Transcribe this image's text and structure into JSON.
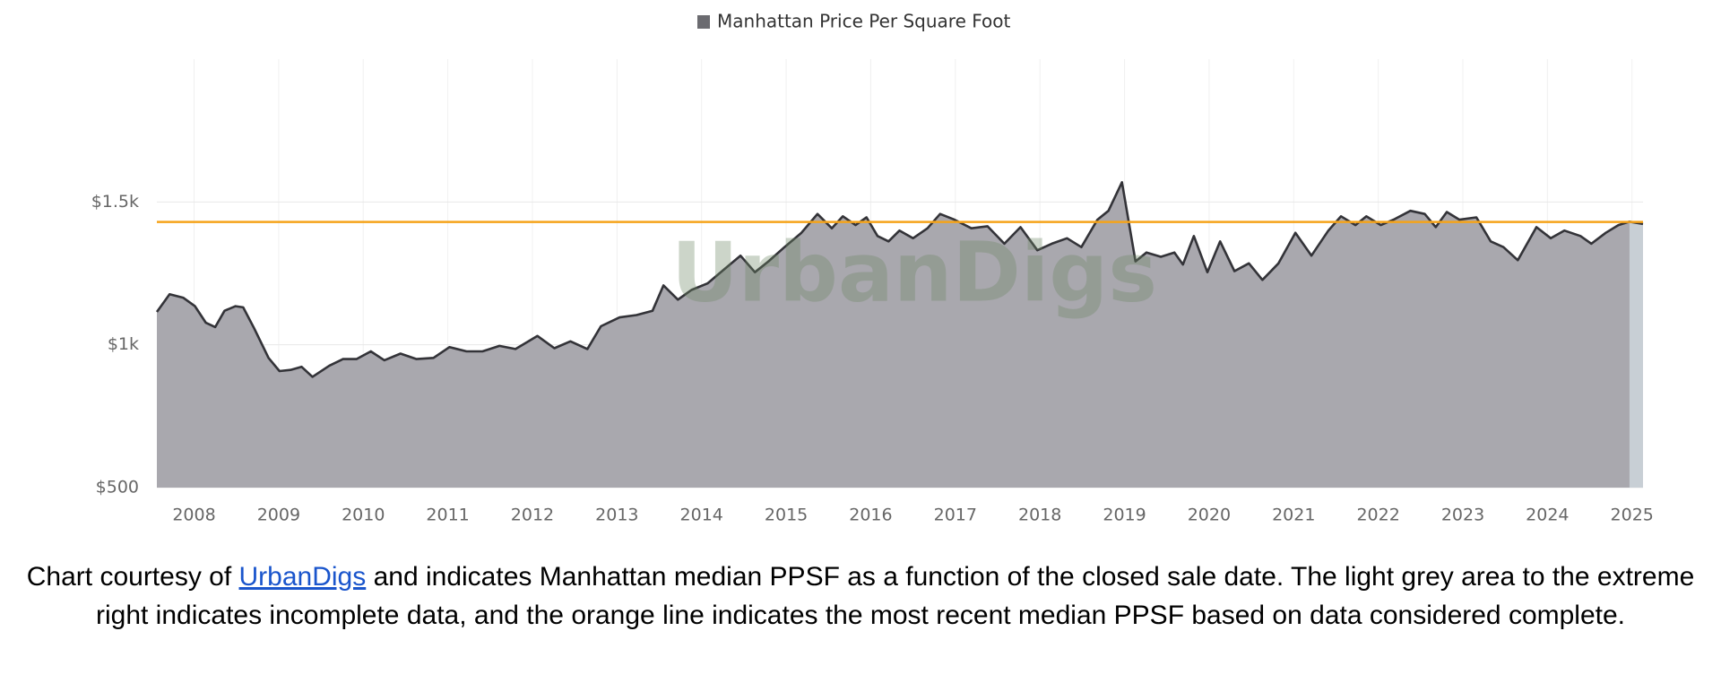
{
  "chart_data": {
    "type": "area",
    "series": [
      {
        "name": "Manhattan Price Per Square Foot",
        "color": "#a9a8ae",
        "line_color": "#333338",
        "x": [
          2007.56,
          2007.71,
          2007.87,
          2008.01,
          2008.14,
          2008.25,
          2008.36,
          2008.49,
          2008.58,
          2008.71,
          2008.88,
          2009.01,
          2009.14,
          2009.27,
          2009.4,
          2009.6,
          2009.76,
          2009.92,
          2010.09,
          2010.25,
          2010.44,
          2010.63,
          2010.83,
          2011.02,
          2011.22,
          2011.41,
          2011.61,
          2011.8,
          2012.06,
          2012.26,
          2012.45,
          2012.65,
          2012.81,
          2013.03,
          2013.23,
          2013.42,
          2013.55,
          2013.72,
          2013.88,
          2014.07,
          2014.27,
          2014.46,
          2014.63,
          2014.79,
          2014.98,
          2015.18,
          2015.37,
          2015.54,
          2015.67,
          2015.82,
          2015.95,
          2016.08,
          2016.21,
          2016.34,
          2016.5,
          2016.67,
          2016.82,
          2016.99,
          2017.19,
          2017.38,
          2017.58,
          2017.77,
          2017.97,
          2018.14,
          2018.32,
          2018.49,
          2018.68,
          2018.81,
          2018.97,
          2019.13,
          2019.26,
          2019.43,
          2019.59,
          2019.69,
          2019.82,
          2019.98,
          2020.13,
          2020.3,
          2020.47,
          2020.63,
          2020.82,
          2021.02,
          2021.21,
          2021.41,
          2021.56,
          2021.73,
          2021.86,
          2022.03,
          2022.18,
          2022.38,
          2022.55,
          2022.68,
          2022.81,
          2022.96,
          2023.16,
          2023.33,
          2023.48,
          2023.65,
          2023.87,
          2024.04,
          2024.2,
          2024.39,
          2024.52,
          2024.69,
          2024.84,
          2024.97,
          2025.13
        ],
        "values": [
          1115,
          1177,
          1165,
          1135,
          1077,
          1062,
          1119,
          1135,
          1131,
          1058,
          954,
          908,
          912,
          923,
          888,
          927,
          950,
          950,
          977,
          946,
          969,
          950,
          954,
          992,
          977,
          977,
          996,
          985,
          1031,
          988,
          1012,
          985,
          1065,
          1096,
          1104,
          1119,
          1208,
          1158,
          1192,
          1215,
          1265,
          1312,
          1254,
          1292,
          1342,
          1392,
          1458,
          1408,
          1450,
          1419,
          1446,
          1381,
          1362,
          1400,
          1373,
          1408,
          1458,
          1438,
          1408,
          1415,
          1354,
          1412,
          1331,
          1354,
          1373,
          1342,
          1438,
          1469,
          1569,
          1292,
          1323,
          1308,
          1323,
          1281,
          1381,
          1254,
          1362,
          1258,
          1285,
          1227,
          1285,
          1392,
          1312,
          1400,
          1450,
          1419,
          1450,
          1419,
          1438,
          1469,
          1458,
          1412,
          1465,
          1438,
          1446,
          1362,
          1342,
          1296,
          1412,
          1373,
          1400,
          1381,
          1354,
          1392,
          1419,
          1431,
          1423
        ]
      }
    ],
    "incomplete_from": 2024.97,
    "incomplete_color": "#c8cfd5",
    "reference_line": {
      "value": 1430,
      "color": "#f5a31a"
    },
    "xlim": [
      2007.56,
      2025.13
    ],
    "xticks": [
      2008,
      2009,
      2010,
      2011,
      2012,
      2013,
      2014,
      2015,
      2016,
      2017,
      2018,
      2019,
      2020,
      2021,
      2022,
      2023,
      2024,
      2025
    ],
    "ylim": [
      500,
      2000
    ],
    "yticks": [
      {
        "value": 500,
        "label": "$500"
      },
      {
        "value": 1000,
        "label": "$1k"
      },
      {
        "value": 1500,
        "label": "$1.5k"
      }
    ],
    "grid": true,
    "watermark": "UrbanDigs"
  },
  "caption": {
    "before": "Chart courtesy of ",
    "link": "UrbanDigs",
    "after": " and indicates Manhattan median PPSF as a function of the closed sale date.  The light grey area to the extreme right indicates incomplete data, and the orange line indicates the most recent median PPSF based on data considered complete."
  }
}
